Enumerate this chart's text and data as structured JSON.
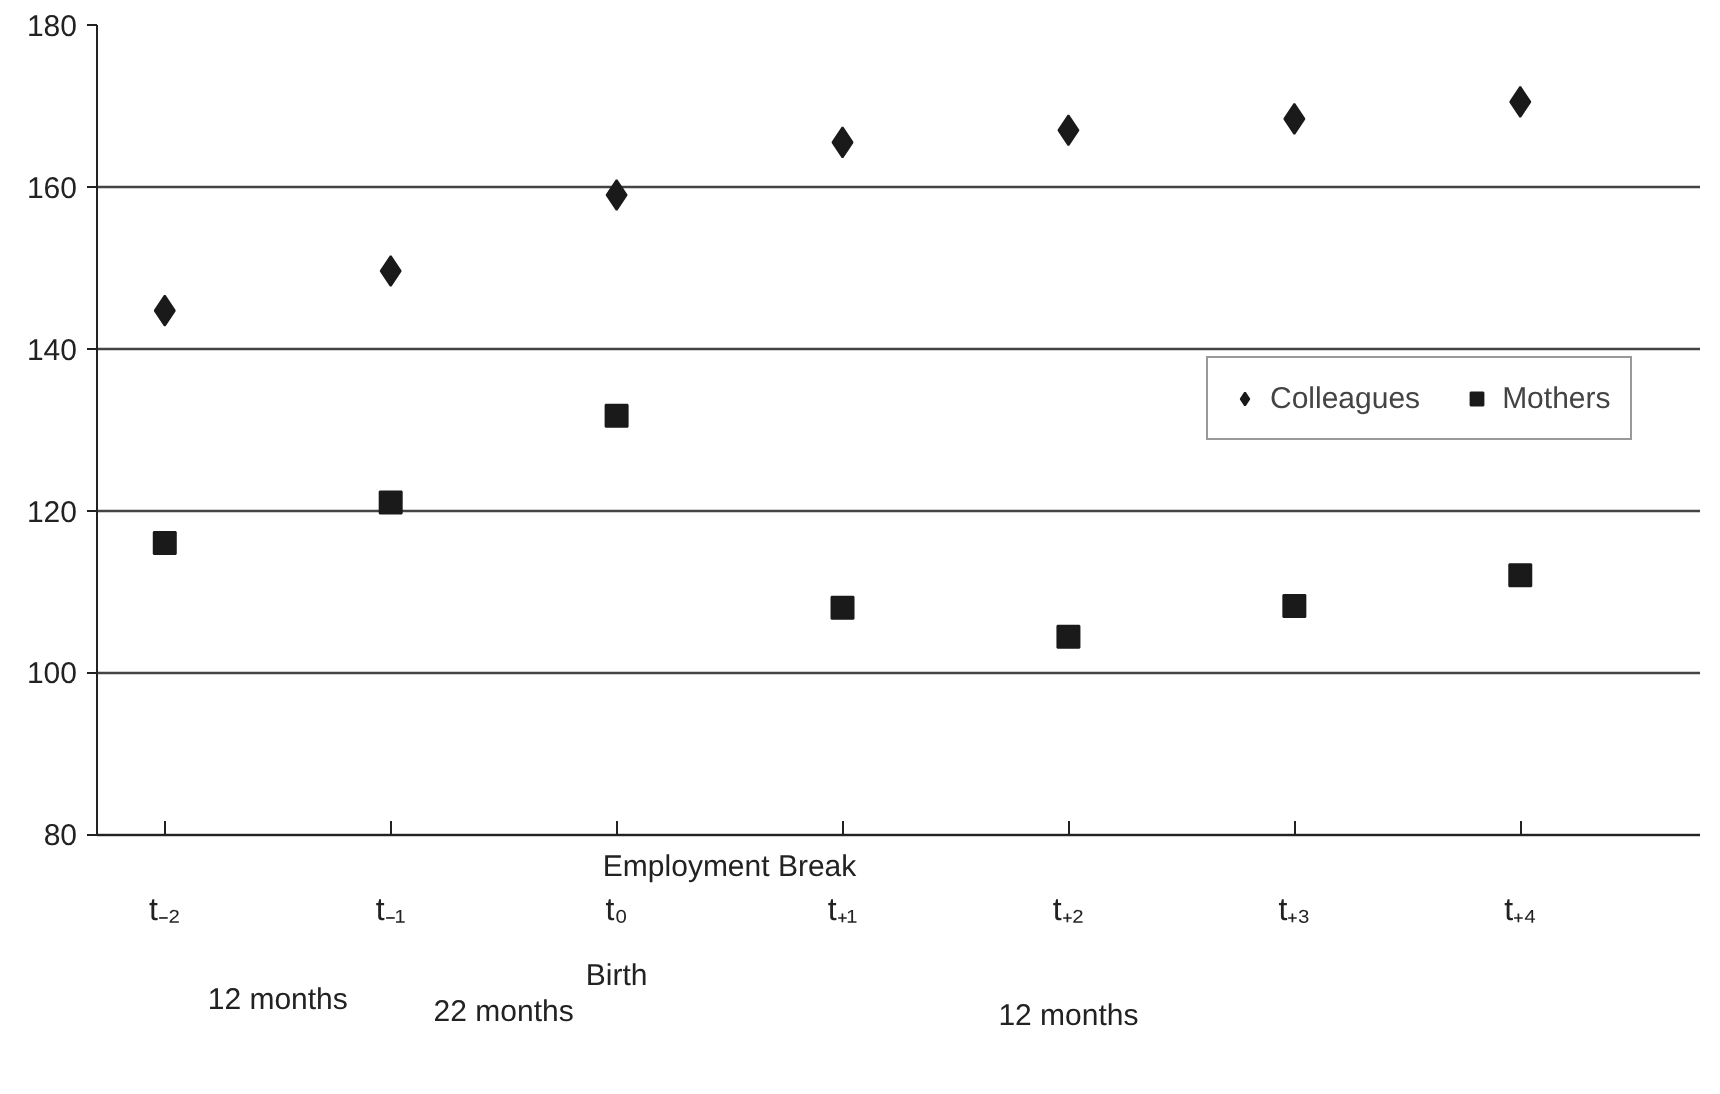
{
  "chart_data": {
    "type": "scatter",
    "ylim": [
      80,
      180
    ],
    "yticks": [
      80,
      100,
      120,
      140,
      160,
      180
    ],
    "categories": [
      "t₋₂",
      "t₋₁",
      "t₀",
      "t₊₁",
      "t₊₂",
      "t₊₃",
      "t₊₄"
    ],
    "grid": "y",
    "legend": "right",
    "series": [
      {
        "name": "Colleagues",
        "color": "#1a1a1a",
        "marker": "diamond",
        "values": [
          144.7,
          149.6,
          159,
          165.5,
          167,
          168.4,
          170.5
        ]
      },
      {
        "name": "Mothers",
        "color": "#1a1a1a",
        "marker": "square",
        "values": [
          116,
          121,
          131.7,
          108,
          104.4,
          108.2,
          112
        ]
      }
    ],
    "annotations": [
      "Employment Break",
      "Birth",
      "12 months",
      "22 months",
      "12 months"
    ]
  }
}
